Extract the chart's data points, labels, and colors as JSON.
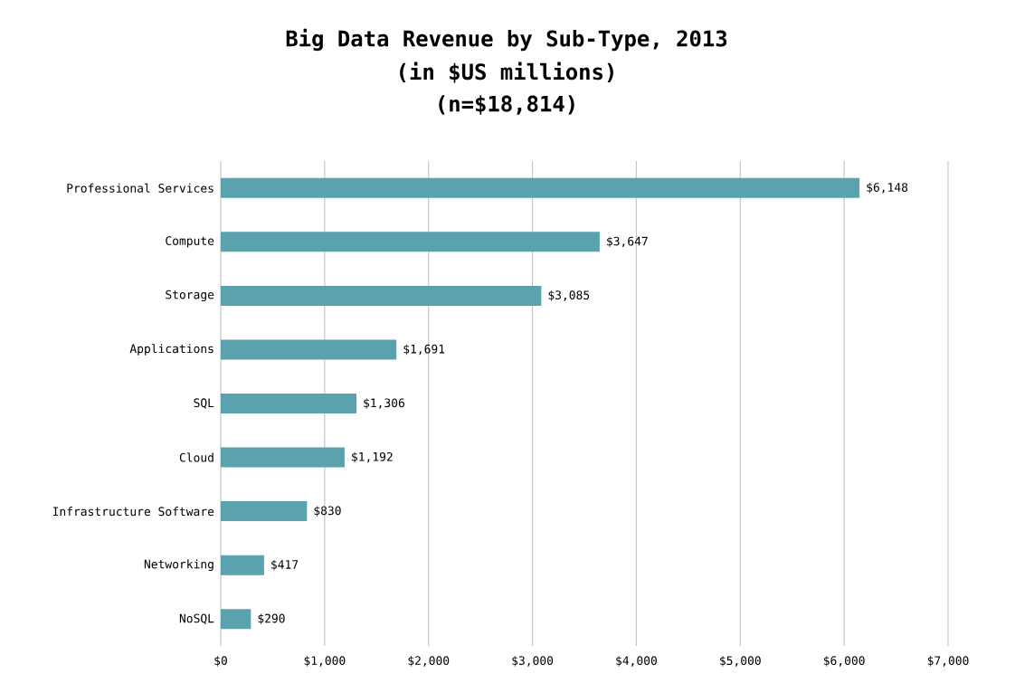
{
  "chart_data": {
    "type": "bar",
    "orientation": "horizontal",
    "title": "Big Data Revenue by Sub-Type, 2013",
    "subtitle": "(in $US millions)",
    "annotations": [
      "(n=$18,814)"
    ],
    "categories": [
      "Professional Services",
      "Compute",
      "Storage",
      "Applications",
      "SQL",
      "Cloud",
      "Infrastructure Software",
      "Networking",
      "NoSQL"
    ],
    "values": [
      6148,
      3647,
      3085,
      1691,
      1306,
      1192,
      830,
      417,
      290
    ],
    "value_labels": [
      "$6,148",
      "$3,647",
      "$3,085",
      "$1,691",
      "$1,306",
      "$1,192",
      "$830",
      "$417",
      "$290"
    ],
    "color": "#5aa2ae",
    "grid": "x",
    "xlim": [
      0,
      7000
    ],
    "xticks": [
      {
        "value": 0,
        "label": "$0"
      },
      {
        "value": 1000,
        "label": "$1,000"
      },
      {
        "value": 2000,
        "label": "$2,000"
      },
      {
        "value": 3000,
        "label": "$3,000"
      },
      {
        "value": 4000,
        "label": "$4,000"
      },
      {
        "value": 5000,
        "label": "$5,000"
      },
      {
        "value": 6000,
        "label": "$6,000"
      },
      {
        "value": 7000,
        "label": "$7,000"
      }
    ]
  }
}
